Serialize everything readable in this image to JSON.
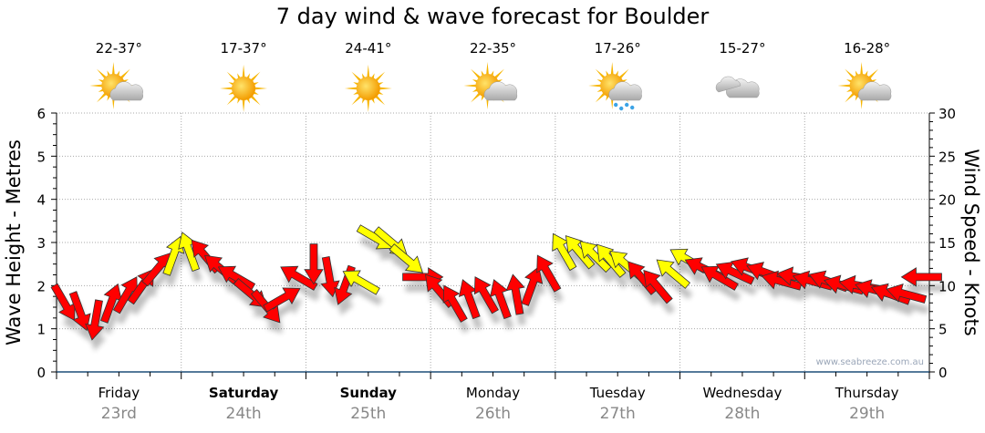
{
  "title": "7 day wind & wave forecast for Boulder",
  "days": [
    {
      "name": "Friday",
      "date": "23rd",
      "temp": "22-37°",
      "icon": "sun-cloud-icon",
      "bold": false
    },
    {
      "name": "Saturday",
      "date": "24th",
      "temp": "17-37°",
      "icon": "sun-icon",
      "bold": true
    },
    {
      "name": "Sunday",
      "date": "25th",
      "temp": "24-41°",
      "icon": "sun-icon",
      "bold": true
    },
    {
      "name": "Monday",
      "date": "26th",
      "temp": "22-35°",
      "icon": "sun-cloud-icon",
      "bold": false
    },
    {
      "name": "Tuesday",
      "date": "27th",
      "temp": "17-26°",
      "icon": "sun-cloud-rain-icon",
      "bold": false
    },
    {
      "name": "Wednesday",
      "date": "28th",
      "temp": "15-27°",
      "icon": "cloud-icon",
      "bold": false
    },
    {
      "name": "Thursday",
      "date": "29th",
      "temp": "16-28°",
      "icon": "sun-cloud-icon",
      "bold": false
    }
  ],
  "watermark": "www.seabreeze.com.au",
  "colors": {
    "red": "#ff0000",
    "yellow": "#ffff00",
    "axis": "#1f4e79",
    "grid": "#aaaaaa"
  },
  "chart_data": {
    "type": "scatter",
    "title": "7 day wind & wave forecast for Boulder",
    "ylabel": "Wave Height - Metres",
    "y2label": "Wind Speed - Knots",
    "ylim": [
      0,
      6
    ],
    "y2lim": [
      0,
      30
    ],
    "yticks": [
      "0",
      "1",
      "2",
      "3",
      "4",
      "5",
      "6"
    ],
    "y2ticks": [
      "0",
      "5",
      "10",
      "15",
      "20",
      "25",
      "30"
    ],
    "grid": true,
    "interval_hours": 3,
    "wind": {
      "speed_knots": [
        8,
        7,
        6,
        8,
        9,
        10,
        12,
        13.5,
        14,
        13.5,
        12,
        11,
        9,
        7.5,
        8.5,
        11,
        12.5,
        11,
        10,
        10.5,
        15.5,
        15,
        13,
        11,
        9.5,
        8,
        8.5,
        9,
        8.5,
        9,
        10,
        11.5,
        14,
        14,
        13.5,
        13,
        12.5,
        11,
        10,
        11.5,
        13,
        12,
        11,
        11.5,
        12,
        11.5,
        10.5,
        11,
        10.5,
        10.5,
        10,
        10,
        9.5,
        9,
        9,
        11
      ],
      "arrow_direction_deg": [
        150,
        160,
        190,
        20,
        30,
        35,
        40,
        20,
        340,
        320,
        310,
        300,
        130,
        140,
        60,
        300,
        180,
        170,
        200,
        300,
        120,
        130,
        130,
        90,
        320,
        330,
        340,
        330,
        340,
        350,
        20,
        330,
        330,
        320,
        315,
        320,
        310,
        320,
        320,
        310,
        300,
        295,
        300,
        295,
        290,
        290,
        285,
        280,
        285,
        290,
        285,
        280,
        285,
        290,
        285,
        270
      ],
      "color": [
        "r",
        "r",
        "r",
        "r",
        "r",
        "r",
        "r",
        "y",
        "y",
        "r",
        "r",
        "r",
        "r",
        "r",
        "r",
        "r",
        "r",
        "r",
        "r",
        "y",
        "y",
        "y",
        "y",
        "r",
        "r",
        "r",
        "r",
        "r",
        "r",
        "r",
        "r",
        "r",
        "y",
        "y",
        "y",
        "y",
        "y",
        "r",
        "r",
        "y",
        "y",
        "r",
        "r",
        "r",
        "r",
        "r",
        "r",
        "r",
        "r",
        "r",
        "r",
        "r",
        "r",
        "r",
        "r",
        "r"
      ]
    }
  }
}
